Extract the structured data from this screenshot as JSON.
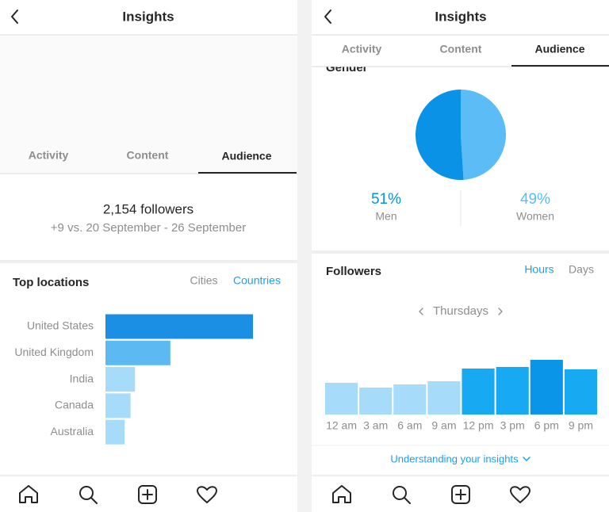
{
  "left": {
    "header": {
      "title": "Insights"
    },
    "tabs": [
      "Activity",
      "Content",
      "Audience"
    ],
    "summary": {
      "followers": "2,154 followers",
      "change": "+9 vs. 20 September - 26 September"
    },
    "locations": {
      "title": "Top locations",
      "filters": [
        "Cities",
        "Countries"
      ],
      "chart_data": {
        "type": "bar",
        "orientation": "horizontal",
        "categories": [
          "United States",
          "United Kingdom",
          "India",
          "Canada",
          "Australia"
        ],
        "values": [
          100,
          44,
          20,
          17,
          13
        ],
        "colors": [
          "#1a8fe3",
          "#5db9f2",
          "#a6dbfa",
          "#a6dbfa",
          "#a6dbfa"
        ],
        "xlim": [
          0,
          100
        ]
      }
    }
  },
  "right": {
    "header": {
      "title": "Insights"
    },
    "tabs": [
      "Activity",
      "Content",
      "Audience"
    ],
    "gender": {
      "title": "Gender",
      "chart_data": {
        "type": "pie",
        "categories": [
          "Men",
          "Women"
        ],
        "values": [
          51,
          49
        ],
        "value_labels": [
          "51%",
          "49%"
        ],
        "colors": [
          "#0a92e6",
          "#5cbcf5"
        ]
      }
    },
    "followers": {
      "title": "Followers",
      "filters": [
        "Hours",
        "Days"
      ],
      "day": "Thursdays",
      "chart_data": {
        "type": "bar",
        "orientation": "vertical",
        "categories": [
          "12 am",
          "3 am",
          "6 am",
          "9 am",
          "12 pm",
          "3 pm",
          "6 pm",
          "9 pm"
        ],
        "values": [
          40,
          34,
          38,
          42,
          58,
          60,
          69,
          57
        ],
        "colors": [
          "#a6dbfa",
          "#a6dbfa",
          "#a6dbfa",
          "#a6dbfa",
          "#17aaf2",
          "#17aaf2",
          "#0a95e8",
          "#17aaf2"
        ],
        "ylim": [
          0,
          100
        ]
      }
    },
    "link": "Understanding your insights"
  }
}
